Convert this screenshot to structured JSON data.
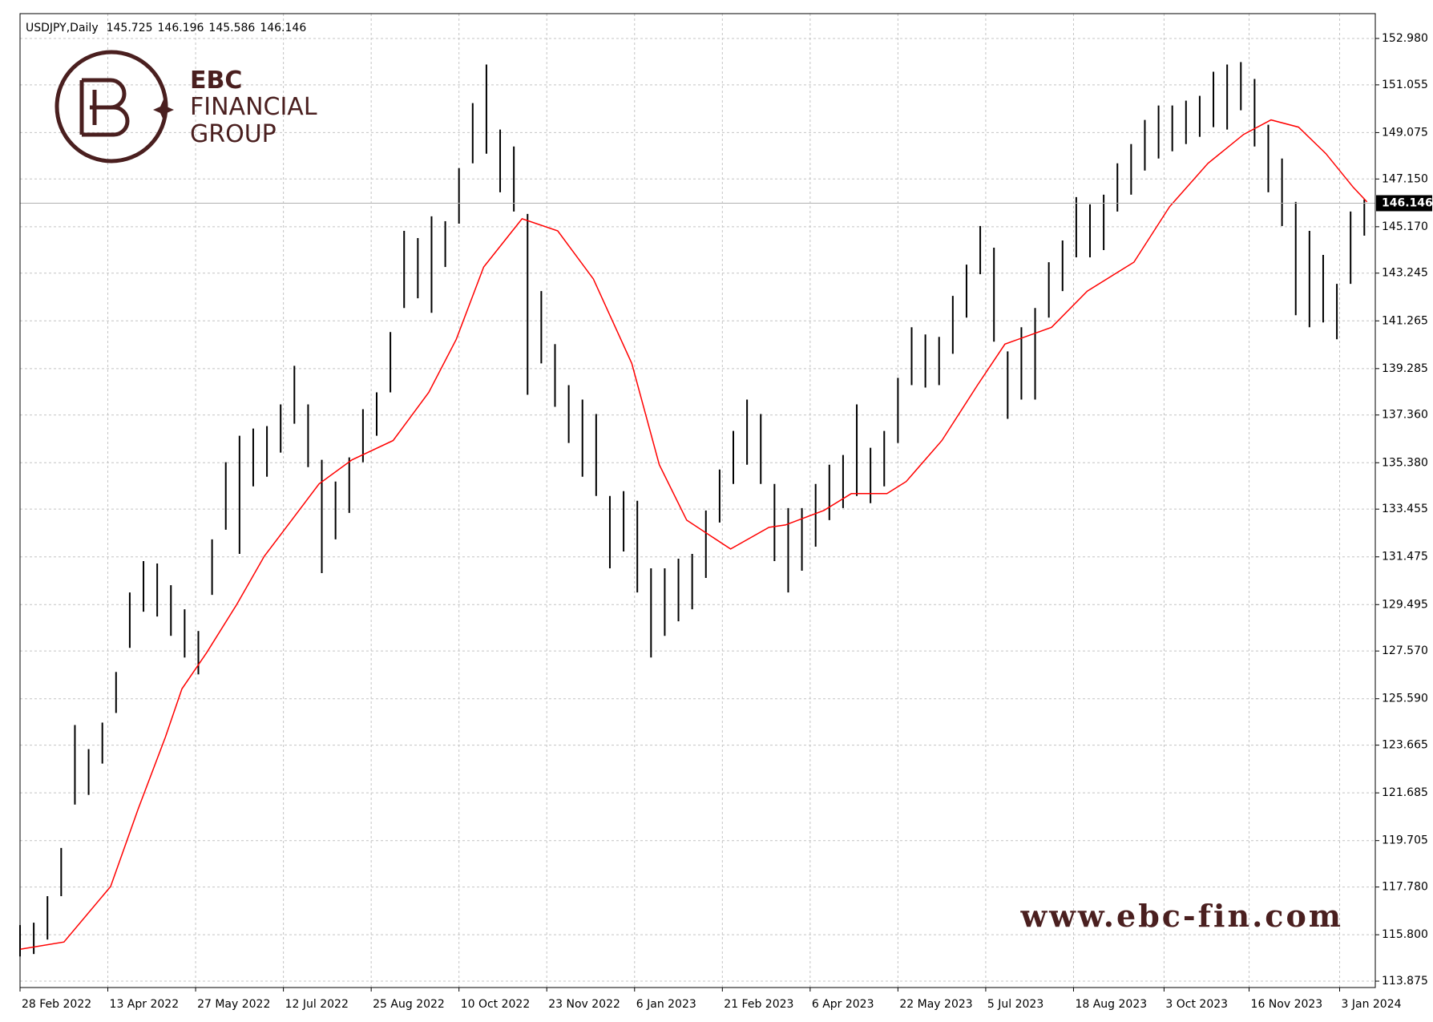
{
  "chart_data": {
    "type": "ohlc",
    "symbol": "USDJPY,Daily",
    "header_values": [
      145.725,
      146.196,
      145.586,
      146.146
    ],
    "last_price": 146.146,
    "grid": true,
    "bar_color": "#000000",
    "xlim": [
      0,
      494
    ],
    "xticks": [
      {
        "value": 0,
        "label": "28 Feb 2022"
      },
      {
        "value": 32,
        "label": "13 Apr 2022"
      },
      {
        "value": 64,
        "label": "27 May 2022"
      },
      {
        "value": 96,
        "label": "12 Jul 2022"
      },
      {
        "value": 128,
        "label": "25 Aug 2022"
      },
      {
        "value": 160,
        "label": "10 Oct 2022"
      },
      {
        "value": 192,
        "label": "23 Nov 2022"
      },
      {
        "value": 224,
        "label": "6 Jan 2023"
      },
      {
        "value": 256,
        "label": "21 Feb 2023"
      },
      {
        "value": 288,
        "label": "6 Apr 2023"
      },
      {
        "value": 320,
        "label": "22 May 2023"
      },
      {
        "value": 352,
        "label": "5 Jul 2023"
      },
      {
        "value": 384,
        "label": "18 Aug 2023"
      },
      {
        "value": 417,
        "label": "3 Oct 2023"
      },
      {
        "value": 448,
        "label": "16 Nov 2023"
      },
      {
        "value": 481,
        "label": "3 Jan 2024"
      }
    ],
    "ylim": [
      113.61,
      154.01
    ],
    "yticks": [
      113.875,
      {
        "value": 115.8,
        "label": "115.800"
      },
      {
        "value": 117.78,
        "label": "117.780"
      },
      119.705,
      121.685,
      123.665,
      {
        "value": 125.59,
        "label": "125.590"
      },
      {
        "value": 127.57,
        "label": "127.570"
      },
      129.495,
      131.475,
      133.455,
      {
        "value": 135.38,
        "label": "135.380"
      },
      {
        "value": 137.36,
        "label": "137.360"
      },
      139.285,
      141.265,
      143.245,
      {
        "value": 145.17,
        "label": "145.170"
      },
      {
        "value": 147.15,
        "label": "147.150"
      },
      149.075,
      151.055,
      {
        "value": 152.98,
        "label": "152.980"
      }
    ],
    "bars": {
      "x": [
        0,
        5,
        10,
        15,
        20,
        25,
        30,
        35,
        40,
        45,
        50,
        55,
        60,
        65,
        70,
        75,
        80,
        85,
        90,
        95,
        100,
        105,
        110,
        115,
        120,
        125,
        130,
        135,
        140,
        145,
        150,
        155,
        160,
        165,
        170,
        175,
        180,
        185,
        190,
        195,
        200,
        205,
        210,
        215,
        220,
        225,
        230,
        235,
        240,
        245,
        250,
        255,
        260,
        265,
        270,
        275,
        280,
        285,
        290,
        295,
        300,
        305,
        310,
        315,
        320,
        325,
        330,
        335,
        340,
        345,
        350,
        355,
        360,
        365,
        370,
        375,
        380,
        385,
        390,
        395,
        400,
        405,
        410,
        415,
        420,
        425,
        430,
        435,
        440,
        445,
        450,
        455,
        460,
        465,
        470,
        475,
        480,
        485,
        490
      ],
      "high": [
        116.2,
        116.3,
        117.4,
        119.4,
        124.5,
        123.5,
        124.6,
        126.7,
        130.0,
        131.3,
        131.2,
        130.3,
        129.3,
        128.4,
        132.2,
        135.4,
        136.5,
        136.8,
        136.9,
        137.8,
        139.4,
        137.8,
        135.5,
        134.6,
        135.6,
        137.6,
        138.3,
        140.8,
        145.0,
        144.7,
        145.6,
        145.4,
        147.6,
        150.3,
        151.9,
        149.2,
        148.5,
        145.7,
        142.5,
        140.3,
        138.6,
        138.0,
        137.4,
        134.0,
        134.2,
        133.8,
        131.0,
        131.0,
        131.4,
        131.6,
        133.4,
        135.1,
        136.7,
        138.0,
        137.4,
        134.5,
        133.5,
        133.5,
        134.5,
        135.3,
        135.7,
        137.8,
        136.0,
        136.7,
        138.9,
        141.0,
        140.7,
        140.6,
        142.3,
        143.6,
        145.2,
        144.3,
        140.0,
        141.0,
        141.8,
        143.7,
        144.6,
        146.4,
        146.1,
        146.5,
        147.8,
        148.6,
        149.6,
        150.2,
        150.2,
        150.4,
        150.6,
        151.6,
        151.9,
        152.0,
        151.3,
        149.4,
        148.0,
        146.2,
        145.0,
        144.0,
        142.8,
        145.8,
        146.3
      ],
      "low": [
        114.9,
        115.0,
        115.6,
        117.4,
        121.2,
        121.6,
        122.9,
        125.0,
        127.7,
        129.2,
        129.0,
        128.2,
        127.3,
        126.6,
        129.9,
        132.6,
        131.6,
        134.4,
        134.8,
        135.8,
        137.0,
        135.2,
        130.8,
        132.2,
        133.3,
        135.4,
        136.5,
        138.3,
        141.8,
        142.2,
        141.6,
        143.5,
        145.3,
        147.8,
        148.2,
        146.6,
        145.8,
        138.2,
        139.5,
        137.7,
        136.2,
        134.8,
        134.0,
        131.0,
        131.7,
        130.0,
        127.3,
        128.2,
        128.8,
        129.3,
        130.6,
        132.9,
        134.5,
        135.3,
        134.5,
        131.3,
        130.0,
        130.9,
        131.9,
        133.0,
        133.5,
        134.0,
        133.7,
        134.4,
        136.2,
        138.6,
        138.5,
        138.6,
        139.9,
        141.4,
        143.2,
        140.4,
        137.2,
        138.0,
        138.0,
        141.4,
        142.5,
        143.9,
        143.9,
        144.2,
        145.8,
        146.5,
        147.5,
        148.0,
        148.3,
        148.6,
        148.9,
        149.3,
        149.2,
        150.0,
        148.5,
        146.6,
        145.2,
        141.5,
        141.0,
        141.2,
        140.5,
        142.8,
        144.8
      ]
    },
    "ma": {
      "color": "#ff0000",
      "x": [
        0,
        16,
        33,
        43,
        53,
        59,
        68,
        79,
        89,
        99,
        109,
        121,
        136,
        149,
        159,
        169,
        183,
        196,
        209,
        223,
        233,
        243,
        259,
        273,
        279,
        293,
        303,
        316,
        323,
        336,
        349,
        359,
        376,
        389,
        406,
        419,
        433,
        446,
        456,
        466,
        476,
        486,
        491
      ],
      "values": [
        115.2,
        115.5,
        117.8,
        121,
        124,
        126,
        127.5,
        129.5,
        131.5,
        133,
        134.5,
        135.5,
        136.3,
        138.3,
        140.5,
        143.5,
        145.5,
        145,
        143,
        139.5,
        135.3,
        133,
        131.8,
        132.7,
        132.8,
        133.4,
        134.1,
        134.1,
        134.6,
        136.3,
        138.6,
        140.3,
        141,
        142.5,
        143.7,
        146,
        147.8,
        149,
        149.6,
        149.3,
        148.2,
        146.8,
        146.2
      ]
    }
  },
  "watermark": {
    "brand": "EBC",
    "line1": "FINANCIAL",
    "line2": "GROUP",
    "url": "www.ebc-fin.com"
  }
}
